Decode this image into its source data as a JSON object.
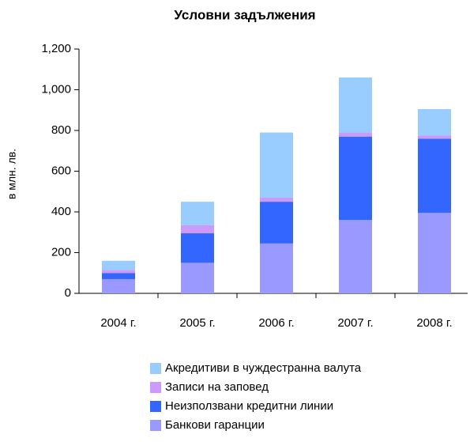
{
  "chart_data": {
    "type": "stacked_bar",
    "title": "Условни задължения",
    "y_label": "в млн. лв.",
    "categories": [
      "2004 г.",
      "2005 г.",
      "2006 г.",
      "2007 г.",
      "2008 г."
    ],
    "series": [
      {
        "name": "Банкови гаранции",
        "color": "#9999ff",
        "values": [
          70,
          150,
          245,
          360,
          395
        ]
      },
      {
        "name": "Неизползвани кредитни линии",
        "color": "#3366ff",
        "values": [
          30,
          145,
          205,
          410,
          365
        ]
      },
      {
        "name": "Записи на заповед",
        "color": "#cc99ff",
        "values": [
          15,
          40,
          20,
          20,
          15
        ]
      },
      {
        "name": "Акредитиви в чуждестранна валута",
        "color": "#99ccff",
        "values": [
          45,
          115,
          320,
          270,
          130
        ]
      }
    ],
    "ylim": [
      0,
      1200
    ],
    "yticks": [
      0,
      200,
      400,
      600,
      800,
      {
        "value": 1000,
        "label": "1,000"
      },
      {
        "value": 1200,
        "label": "1,200"
      }
    ],
    "grid": false
  }
}
